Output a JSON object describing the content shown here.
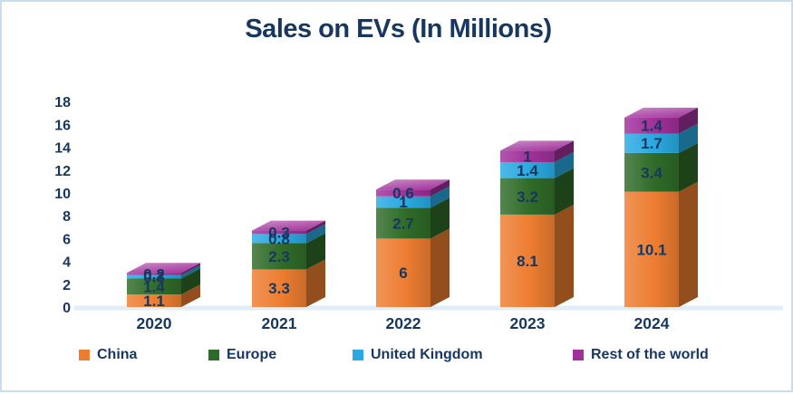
{
  "window": {
    "border_color": "#c9ddf0",
    "background": "#ffffff"
  },
  "title": {
    "text": "Sales on EVs (In Millions)",
    "color": "#17375e"
  },
  "chart_data": {
    "type": "bar",
    "variant": "3d-stacked-column",
    "title": "Sales on EVs (In Millions)",
    "categories": [
      "2020",
      "2021",
      "2022",
      "2023",
      "2024"
    ],
    "series": [
      {
        "name": "China",
        "color": "#ED7D31",
        "values": [
          1.1,
          3.3,
          6,
          8.1,
          10.1
        ]
      },
      {
        "name": "Europe",
        "color": "#2F6B28",
        "values": [
          1.4,
          2.3,
          2.7,
          3.2,
          3.4
        ]
      },
      {
        "name": "United Kingdom",
        "color": "#29A9E1",
        "values": [
          0.3,
          0.8,
          1,
          1.4,
          1.7
        ]
      },
      {
        "name": "Rest of the world",
        "color": "#A0309A",
        "values": [
          0.2,
          0.3,
          0.6,
          1,
          1.4
        ]
      }
    ],
    "totals": [
      3.0,
      6.7,
      10.3,
      13.7,
      16.6
    ],
    "xlabel": "",
    "ylabel": "",
    "ylim": [
      0,
      18
    ],
    "yticks": [
      0,
      2,
      4,
      6,
      8,
      10,
      12,
      14,
      16,
      18
    ],
    "grid": false,
    "data_labels": true,
    "legend_position": "bottom",
    "text_color": "#17375e",
    "floor_color": "#e2eef7"
  }
}
